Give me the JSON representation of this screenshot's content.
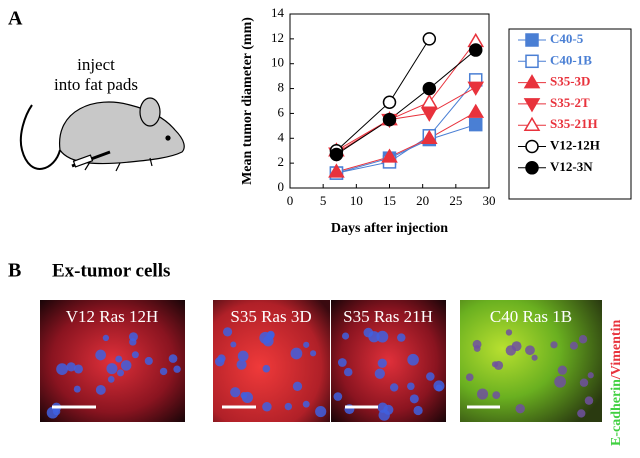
{
  "panel_a": {
    "label": "A",
    "inject_text": [
      "inject",
      "into fat pads"
    ]
  },
  "chart_data": {
    "type": "line",
    "ylabel": "Mean tumor diameter (mm)",
    "xlabel": "Days after injection",
    "x": [
      7,
      15,
      21,
      28
    ],
    "xlim": [
      0,
      30
    ],
    "xticks": [
      0,
      5,
      10,
      15,
      20,
      25,
      30
    ],
    "ylim": [
      0,
      14
    ],
    "yticks": [
      0,
      2,
      4,
      6,
      8,
      10,
      12,
      14
    ],
    "series": [
      {
        "name": "C40-5",
        "color": "#4a7fd4",
        "marker": "square",
        "filled": true,
        "values": [
          1.2,
          2.4,
          3.9,
          5.1
        ]
      },
      {
        "name": "C40-1B",
        "color": "#4a7fd4",
        "marker": "square",
        "filled": false,
        "values": [
          1.2,
          2.1,
          4.2,
          8.7
        ]
      },
      {
        "name": "S35-3D",
        "color": "#e8323c",
        "marker": "triangle-up",
        "filled": true,
        "values": [
          1.3,
          2.5,
          4.0,
          6.1
        ]
      },
      {
        "name": "S35-2T",
        "color": "#e8323c",
        "marker": "triangle-down",
        "filled": true,
        "values": [
          2.8,
          5.5,
          6.0,
          8.1
        ]
      },
      {
        "name": "S35-21H",
        "color": "#e8323c",
        "marker": "triangle-up",
        "filled": false,
        "values": [
          3.0,
          5.5,
          6.9,
          11.8
        ]
      },
      {
        "name": "V12-12H",
        "color": "#000000",
        "marker": "circle",
        "filled": false,
        "values": [
          3.0,
          6.9,
          12.0,
          null
        ]
      },
      {
        "name": "V12-3N",
        "color": "#000000",
        "marker": "circle",
        "filled": true,
        "values": [
          2.7,
          5.5,
          8.0,
          11.1
        ]
      }
    ]
  },
  "panel_b": {
    "label": "B",
    "title": "Ex-tumor cells",
    "images": [
      "V12 Ras 12H",
      "S35 Ras 3D",
      "S35 Ras 21H",
      "C40 Ras 1B"
    ],
    "stain": [
      "E-cadherin",
      "/Vimentin"
    ]
  }
}
